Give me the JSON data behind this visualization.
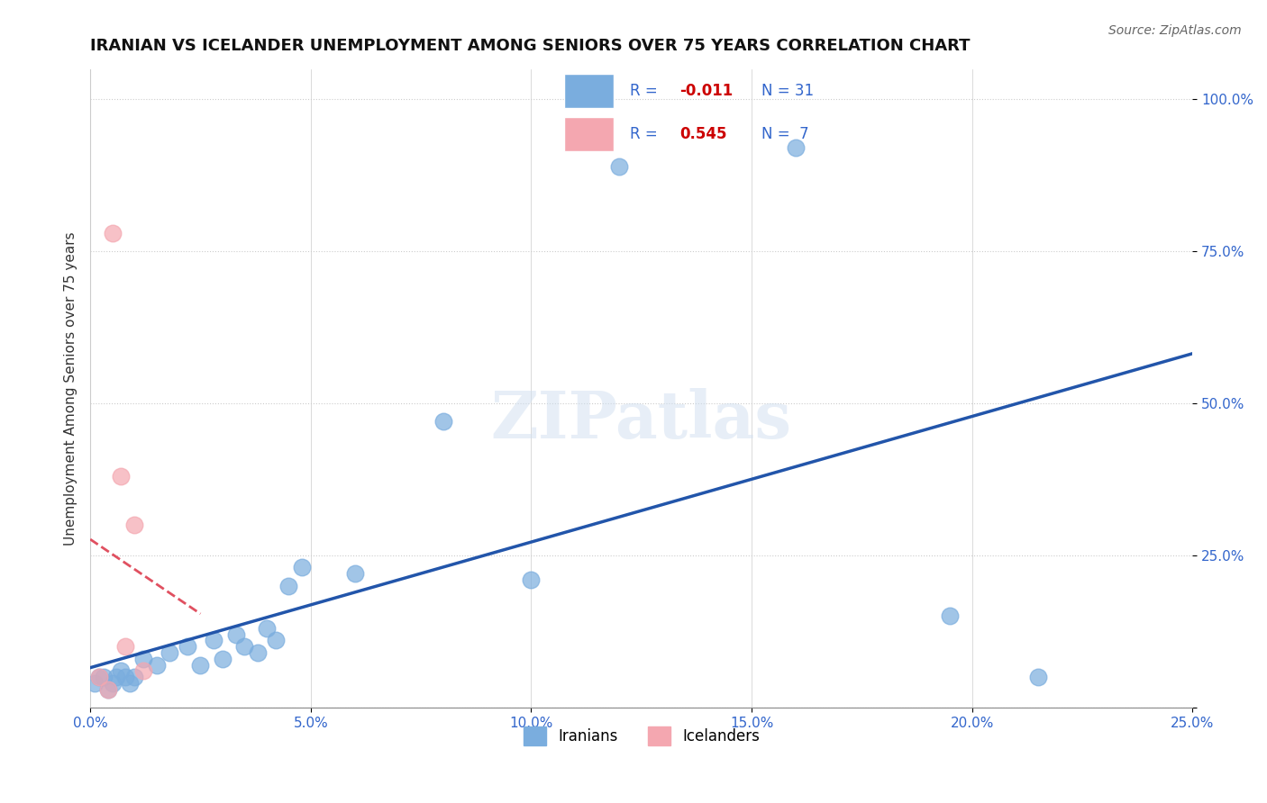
{
  "title": "IRANIAN VS ICELANDER UNEMPLOYMENT AMONG SENIORS OVER 75 YEARS CORRELATION CHART",
  "source": "Source: ZipAtlas.com",
  "xlabel": "",
  "ylabel": "Unemployment Among Seniors over 75 years",
  "xlim": [
    0.0,
    0.25
  ],
  "ylim": [
    0.0,
    1.05
  ],
  "xticks": [
    0.0,
    0.05,
    0.1,
    0.15,
    0.2,
    0.25
  ],
  "ytick_labels": [
    "",
    "25.0%",
    "50.0%",
    "75.0%",
    "100.0%"
  ],
  "ytick_values": [
    0.0,
    0.25,
    0.5,
    0.75,
    1.0
  ],
  "background_color": "#ffffff",
  "watermark": "ZIPatlas",
  "iranian_color": "#7aadde",
  "icelander_color": "#f4a7b0",
  "trend_iranian_color": "#2255aa",
  "trend_icelander_color": "#e05060",
  "legend_R_iranian": "R = -0.011",
  "legend_N_iranian": "N = 31",
  "legend_R_icelander": "R = 0.545",
  "legend_N_icelander": "N = 7",
  "iranian_x": [
    0.001,
    0.002,
    0.003,
    0.004,
    0.005,
    0.006,
    0.007,
    0.008,
    0.009,
    0.01,
    0.012,
    0.015,
    0.018,
    0.02,
    0.022,
    0.025,
    0.028,
    0.03,
    0.032,
    0.035,
    0.038,
    0.04,
    0.043,
    0.045,
    0.048,
    0.05,
    0.06,
    0.08,
    0.12,
    0.18,
    0.22
  ],
  "iranian_y": [
    0.05,
    0.04,
    0.06,
    0.03,
    0.05,
    0.07,
    0.04,
    0.05,
    0.06,
    0.04,
    0.08,
    0.07,
    0.1,
    0.09,
    0.08,
    0.12,
    0.07,
    0.08,
    0.1,
    0.11,
    0.09,
    0.14,
    0.1,
    0.13,
    0.2,
    0.23,
    0.21,
    0.48,
    0.9,
    0.93,
    0.06
  ],
  "icelander_x": [
    0.002,
    0.004,
    0.005,
    0.007,
    0.008,
    0.01,
    0.012
  ],
  "icelander_y": [
    0.05,
    0.03,
    0.77,
    0.38,
    0.1,
    0.3,
    0.06
  ],
  "grid_color": "#cccccc",
  "grid_style": "dotted"
}
